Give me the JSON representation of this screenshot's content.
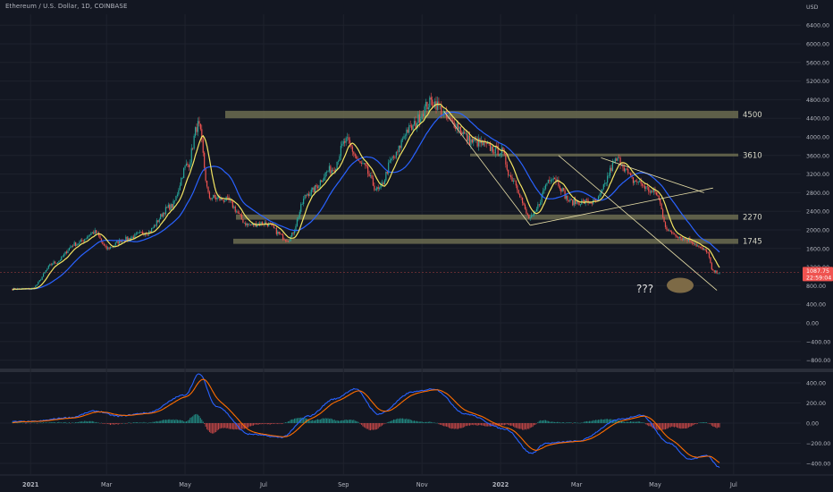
{
  "header": {
    "symbol_title": "Ethereum / U.S. Dollar, 1D, COINBASE",
    "currency": "USD"
  },
  "colors": {
    "background": "#131722",
    "grid": "#1e222d",
    "axis_text": "#b2b5be",
    "up": "#26a69a",
    "down": "#ef5350",
    "ma_fast": "#f5e663",
    "ma_slow": "#2962ff",
    "zone_fill": "#6f6f52",
    "arrow": "#e8dfa8",
    "target_ellipse": "#7d6a46",
    "price_label_bg": "#ef5350",
    "macd_line": "#2962ff",
    "signal_line": "#ff6d00"
  },
  "chart_data": [
    {
      "type": "candlestick",
      "title": "Ethereum / U.S. Dollar, 1D, COINBASE",
      "x_tick_labels": [
        "2021",
        "Mar",
        "May",
        "Jul",
        "Sep",
        "Nov",
        "2022",
        "Mar",
        "May",
        "Jul"
      ],
      "y_tick_labels": [
        "6400.00",
        "6000.00",
        "5600.00",
        "5200.00",
        "4800.00",
        "4400.00",
        "4000.00",
        "3600.00",
        "3200.00",
        "2800.00",
        "2400.00",
        "2000.00",
        "1600.00",
        "1200.00",
        "800.00",
        "400.00",
        "0.00",
        "−400.00",
        "−800.00"
      ],
      "y_unit": "USD",
      "ylim": [
        -880,
        6700
      ],
      "grid": true,
      "moving_averages": [
        "fast (yellow)",
        "slow (blue)"
      ],
      "close_path": [
        [
          "2021-01-01",
          730
        ],
        [
          "2021-01-20",
          1300
        ],
        [
          "2021-02-05",
          1700
        ],
        [
          "2021-02-20",
          1950
        ],
        [
          "2021-03-01",
          1600
        ],
        [
          "2021-03-15",
          1800
        ],
        [
          "2021-04-01",
          1950
        ],
        [
          "2021-04-20",
          2500
        ],
        [
          "2021-05-03",
          3400
        ],
        [
          "2021-05-11",
          4250
        ],
        [
          "2021-05-20",
          2700
        ],
        [
          "2021-06-01",
          2650
        ],
        [
          "2021-06-20",
          2100
        ],
        [
          "2021-07-01",
          2150
        ],
        [
          "2021-07-20",
          1800
        ],
        [
          "2021-08-05",
          2800
        ],
        [
          "2021-08-23",
          3300
        ],
        [
          "2021-09-03",
          3900
        ],
        [
          "2021-09-15",
          3400
        ],
        [
          "2021-09-28",
          2850
        ],
        [
          "2021-10-10",
          3550
        ],
        [
          "2021-10-21",
          4150
        ],
        [
          "2021-11-09",
          4750
        ],
        [
          "2021-11-25",
          4300
        ],
        [
          "2021-12-10",
          3900
        ],
        [
          "2022-01-01",
          3700
        ],
        [
          "2022-01-10",
          3100
        ],
        [
          "2022-01-24",
          2250
        ],
        [
          "2022-02-10",
          3150
        ],
        [
          "2022-02-25",
          2600
        ],
        [
          "2022-03-15",
          2600
        ],
        [
          "2022-04-02",
          3500
        ],
        [
          "2022-04-15",
          3050
        ],
        [
          "2022-05-01",
          2800
        ],
        [
          "2022-05-12",
          1950
        ],
        [
          "2022-05-25",
          1800
        ],
        [
          "2022-06-10",
          1550
        ],
        [
          "2022-06-15",
          1100
        ],
        [
          "2022-06-20",
          1087.75
        ]
      ],
      "zones": [
        {
          "label": "4500",
          "low": 4400,
          "high": 4560
        },
        {
          "label": "3610",
          "low": 3580,
          "high": 3640
        },
        {
          "label": "2270",
          "low": 2220,
          "high": 2330
        },
        {
          "label": "1745",
          "low": 1700,
          "high": 1810
        }
      ],
      "annotations": [
        "???"
      ],
      "current_price_label": [
        "1087.75",
        "22:59:04"
      ]
    },
    {
      "type": "line",
      "title": "",
      "y_tick_labels": [
        "400.00",
        "200.00",
        "0.00",
        "−200.00",
        "−400.00"
      ],
      "ylim": [
        -460,
        480
      ],
      "series_description": "MACD oscillator with histogram",
      "macd_path": [
        [
          "2021-01-01",
          15
        ],
        [
          "2021-02-01",
          55
        ],
        [
          "2021-02-20",
          120
        ],
        [
          "2021-03-10",
          70
        ],
        [
          "2021-04-01",
          100
        ],
        [
          "2021-05-01",
          280
        ],
        [
          "2021-05-12",
          490
        ],
        [
          "2021-05-25",
          170
        ],
        [
          "2021-06-20",
          -110
        ],
        [
          "2021-07-15",
          -140
        ],
        [
          "2021-08-05",
          70
        ],
        [
          "2021-08-25",
          240
        ],
        [
          "2021-09-10",
          340
        ],
        [
          "2021-09-28",
          90
        ],
        [
          "2021-10-25",
          310
        ],
        [
          "2021-11-10",
          340
        ],
        [
          "2021-12-05",
          90
        ],
        [
          "2022-01-05",
          -60
        ],
        [
          "2022-01-25",
          -300
        ],
        [
          "2022-02-05",
          -200
        ],
        [
          "2022-03-01",
          -180
        ],
        [
          "2022-04-05",
          40
        ],
        [
          "2022-04-20",
          80
        ],
        [
          "2022-05-12",
          -200
        ],
        [
          "2022-05-28",
          -360
        ],
        [
          "2022-06-10",
          -320
        ],
        [
          "2022-06-20",
          -440
        ]
      ]
    }
  ]
}
